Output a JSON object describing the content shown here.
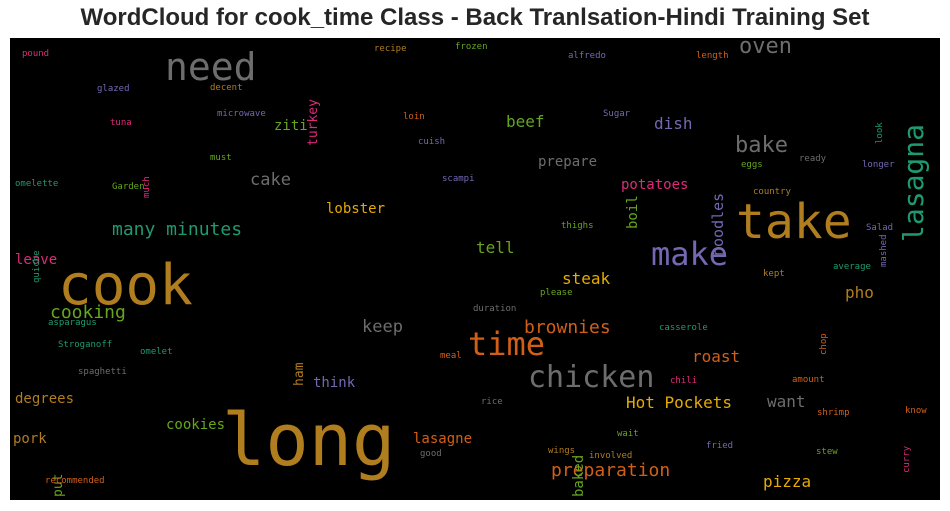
{
  "chart_data": {
    "type": "wordcloud",
    "title": "WordCloud for cook_time Class - Back Tranlsation-Hindi Training Set",
    "background": "#000000",
    "colors": {
      "gold": "#b07d1f",
      "gray": "#6d6d6d",
      "green": "#1f9a70",
      "purple": "#7468b3",
      "orange": "#d25f17",
      "pink": "#dd2a7b",
      "lime": "#66a61e",
      "yellow": "#e6ab02"
    },
    "words": [
      {
        "text": "long",
        "color": "gold",
        "orientation": "horizontal"
      },
      {
        "text": "cook",
        "color": "gold",
        "orientation": "horizontal"
      },
      {
        "text": "take",
        "color": "gold",
        "orientation": "horizontal"
      },
      {
        "text": "need",
        "color": "gray",
        "orientation": "horizontal"
      },
      {
        "text": "make",
        "color": "purple",
        "orientation": "horizontal"
      },
      {
        "text": "time",
        "color": "orange",
        "orientation": "horizontal"
      },
      {
        "text": "chicken",
        "color": "gray",
        "orientation": "horizontal"
      },
      {
        "text": "lasagna",
        "color": "green",
        "orientation": "vertical"
      },
      {
        "text": "oven",
        "color": "gray",
        "orientation": "horizontal"
      },
      {
        "text": "bake",
        "color": "gray",
        "orientation": "horizontal"
      },
      {
        "text": "many minutes",
        "color": "green",
        "orientation": "horizontal"
      },
      {
        "text": "cooking",
        "color": "lime",
        "orientation": "horizontal"
      },
      {
        "text": "brownies",
        "color": "orange",
        "orientation": "horizontal"
      },
      {
        "text": "preparation",
        "color": "orange",
        "orientation": "horizontal"
      },
      {
        "text": "Hot Pockets",
        "color": "yellow",
        "orientation": "horizontal"
      },
      {
        "text": "cake",
        "color": "gray",
        "orientation": "horizontal"
      },
      {
        "text": "beef",
        "color": "lime",
        "orientation": "horizontal"
      },
      {
        "text": "dish",
        "color": "purple",
        "orientation": "horizontal"
      },
      {
        "text": "steak",
        "color": "yellow",
        "orientation": "horizontal"
      },
      {
        "text": "keep",
        "color": "gray",
        "orientation": "horizontal"
      },
      {
        "text": "tell",
        "color": "lime",
        "orientation": "horizontal"
      },
      {
        "text": "roast",
        "color": "orange",
        "orientation": "horizontal"
      },
      {
        "text": "want",
        "color": "gray",
        "orientation": "horizontal"
      },
      {
        "text": "pizza",
        "color": "yellow",
        "orientation": "horizontal"
      },
      {
        "text": "pho",
        "color": "gold",
        "orientation": "horizontal"
      },
      {
        "text": "prepare",
        "color": "gray",
        "orientation": "horizontal"
      },
      {
        "text": "potatoes",
        "color": "pink",
        "orientation": "horizontal"
      },
      {
        "text": "noodles",
        "color": "purple",
        "orientation": "vertical"
      },
      {
        "text": "boil",
        "color": "lime",
        "orientation": "vertical"
      },
      {
        "text": "pork",
        "color": "gold",
        "orientation": "horizontal"
      },
      {
        "text": "cookies",
        "color": "lime",
        "orientation": "horizontal"
      },
      {
        "text": "degrees",
        "color": "gold",
        "orientation": "horizontal"
      },
      {
        "text": "lasagne",
        "color": "orange",
        "orientation": "horizontal"
      },
      {
        "text": "baked",
        "color": "lime",
        "orientation": "vertical"
      },
      {
        "text": "lobster",
        "color": "yellow",
        "orientation": "horizontal"
      },
      {
        "text": "think",
        "color": "purple",
        "orientation": "horizontal"
      },
      {
        "text": "put",
        "color": "lime",
        "orientation": "vertical"
      },
      {
        "text": "ham",
        "color": "gold",
        "orientation": "vertical"
      },
      {
        "text": "ziti",
        "color": "lime",
        "orientation": "horizontal"
      },
      {
        "text": "turkey",
        "color": "pink",
        "orientation": "vertical"
      },
      {
        "text": "leave",
        "color": "pink",
        "orientation": "horizontal"
      },
      {
        "text": "pound",
        "color": "pink",
        "orientation": "horizontal"
      },
      {
        "text": "recipe",
        "color": "gold",
        "orientation": "horizontal"
      },
      {
        "text": "frozen",
        "color": "lime",
        "orientation": "horizontal"
      },
      {
        "text": "alfredo",
        "color": "purple",
        "orientation": "horizontal"
      },
      {
        "text": "length",
        "color": "orange",
        "orientation": "horizontal"
      },
      {
        "text": "look",
        "color": "green",
        "orientation": "vertical"
      },
      {
        "text": "glazed",
        "color": "purple",
        "orientation": "horizontal"
      },
      {
        "text": "decent",
        "color": "gold",
        "orientation": "horizontal"
      },
      {
        "text": "microwave",
        "color": "purple",
        "orientation": "horizontal"
      },
      {
        "text": "loin",
        "color": "orange",
        "orientation": "horizontal"
      },
      {
        "text": "Sugar",
        "color": "purple",
        "orientation": "horizontal"
      },
      {
        "text": "tuna",
        "color": "pink",
        "orientation": "horizontal"
      },
      {
        "text": "much",
        "color": "pink",
        "orientation": "vertical"
      },
      {
        "text": "cuish",
        "color": "purple",
        "orientation": "horizontal"
      },
      {
        "text": "must",
        "color": "lime",
        "orientation": "horizontal"
      },
      {
        "text": "eggs",
        "color": "lime",
        "orientation": "horizontal"
      },
      {
        "text": "ready",
        "color": "gray",
        "orientation": "horizontal"
      },
      {
        "text": "longer",
        "color": "purple",
        "orientation": "horizontal"
      },
      {
        "text": "omelette",
        "color": "green",
        "orientation": "horizontal"
      },
      {
        "text": "Garden",
        "color": "lime",
        "orientation": "horizontal"
      },
      {
        "text": "scampi",
        "color": "purple",
        "orientation": "horizontal"
      },
      {
        "text": "country",
        "color": "gold",
        "orientation": "horizontal"
      },
      {
        "text": "mashed",
        "color": "purple",
        "orientation": "vertical"
      },
      {
        "text": "quiche",
        "color": "green",
        "orientation": "vertical"
      },
      {
        "text": "thighs",
        "color": "lime",
        "orientation": "horizontal"
      },
      {
        "text": "Salad",
        "color": "purple",
        "orientation": "horizontal"
      },
      {
        "text": "kept",
        "color": "gold",
        "orientation": "horizontal"
      },
      {
        "text": "average",
        "color": "green",
        "orientation": "horizontal"
      },
      {
        "text": "chop",
        "color": "orange",
        "orientation": "vertical"
      },
      {
        "text": "please",
        "color": "lime",
        "orientation": "horizontal"
      },
      {
        "text": "asparagus",
        "color": "green",
        "orientation": "horizontal"
      },
      {
        "text": "duration",
        "color": "gray",
        "orientation": "horizontal"
      },
      {
        "text": "casserole",
        "color": "green",
        "orientation": "horizontal"
      },
      {
        "text": "Stroganoff",
        "color": "green",
        "orientation": "horizontal"
      },
      {
        "text": "omelet",
        "color": "green",
        "orientation": "horizontal"
      },
      {
        "text": "meal",
        "color": "orange",
        "orientation": "horizontal"
      },
      {
        "text": "spaghetti",
        "color": "gray",
        "orientation": "horizontal"
      },
      {
        "text": "chili",
        "color": "pink",
        "orientation": "horizontal"
      },
      {
        "text": "amount",
        "color": "orange",
        "orientation": "horizontal"
      },
      {
        "text": "rice",
        "color": "gray",
        "orientation": "horizontal"
      },
      {
        "text": "shrimp",
        "color": "orange",
        "orientation": "horizontal"
      },
      {
        "text": "curry",
        "color": "pink",
        "orientation": "vertical"
      },
      {
        "text": "know",
        "color": "orange",
        "orientation": "horizontal"
      },
      {
        "text": "wait",
        "color": "lime",
        "orientation": "horizontal"
      },
      {
        "text": "fried",
        "color": "purple",
        "orientation": "horizontal"
      },
      {
        "text": "wings",
        "color": "gold",
        "orientation": "horizontal"
      },
      {
        "text": "good",
        "color": "gray",
        "orientation": "horizontal"
      },
      {
        "text": "involved",
        "color": "gold",
        "orientation": "horizontal"
      },
      {
        "text": "stew",
        "color": "lime",
        "orientation": "horizontal"
      },
      {
        "text": "recommended",
        "color": "orange",
        "orientation": "horizontal"
      }
    ]
  }
}
